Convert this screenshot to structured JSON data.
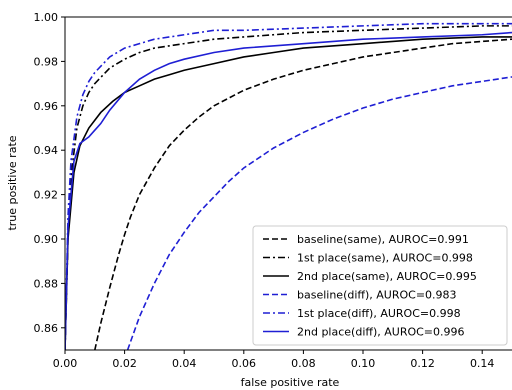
{
  "chart_data": {
    "type": "line",
    "title": "",
    "xlabel": "false positive rate",
    "ylabel": "true positive rate",
    "xlim": [
      0,
      0.15
    ],
    "ylim": [
      0.85,
      1.0
    ],
    "xticks": [
      0.0,
      0.02,
      0.04,
      0.06,
      0.08,
      0.1,
      0.12,
      0.14
    ],
    "xtick_labels": [
      "0.00",
      "0.02",
      "0.04",
      "0.06",
      "0.08",
      "0.10",
      "0.12",
      "0.14"
    ],
    "yticks": [
      0.86,
      0.88,
      0.9,
      0.92,
      0.94,
      0.96,
      0.98,
      1.0
    ],
    "ytick_labels": [
      "0.86",
      "0.88",
      "0.90",
      "0.92",
      "0.94",
      "0.96",
      "0.98",
      "1.00"
    ],
    "grid": false,
    "legend_position": "lower-right",
    "series": [
      {
        "name": "baseline(same), AUROC=0.991",
        "color": "#000000",
        "dash": "dashed",
        "x": [
          0.01,
          0.012,
          0.015,
          0.018,
          0.02,
          0.022,
          0.025,
          0.03,
          0.035,
          0.04,
          0.045,
          0.05,
          0.06,
          0.07,
          0.08,
          0.09,
          0.1,
          0.11,
          0.12,
          0.13,
          0.14,
          0.15
        ],
        "y": [
          0.85,
          0.862,
          0.878,
          0.893,
          0.902,
          0.91,
          0.92,
          0.932,
          0.942,
          0.949,
          0.955,
          0.96,
          0.967,
          0.972,
          0.976,
          0.979,
          0.982,
          0.984,
          0.986,
          0.988,
          0.989,
          0.99
        ]
      },
      {
        "name": "1st place(same), AUROC=0.998",
        "color": "#000000",
        "dash": "dashdot",
        "x": [
          0.0,
          0.001,
          0.002,
          0.004,
          0.006,
          0.008,
          0.01,
          0.015,
          0.02,
          0.025,
          0.03,
          0.04,
          0.05,
          0.06,
          0.08,
          0.1,
          0.12,
          0.14,
          0.15
        ],
        "y": [
          0.85,
          0.9,
          0.928,
          0.95,
          0.96,
          0.966,
          0.97,
          0.977,
          0.981,
          0.984,
          0.986,
          0.988,
          0.99,
          0.991,
          0.993,
          0.994,
          0.995,
          0.996,
          0.996
        ]
      },
      {
        "name": "2nd place(same), AUROC=0.995",
        "color": "#000000",
        "dash": "solid",
        "x": [
          0.0,
          0.001,
          0.003,
          0.005,
          0.008,
          0.012,
          0.016,
          0.02,
          0.025,
          0.03,
          0.035,
          0.04,
          0.05,
          0.06,
          0.07,
          0.08,
          0.1,
          0.12,
          0.14,
          0.15
        ],
        "y": [
          0.85,
          0.9,
          0.93,
          0.942,
          0.95,
          0.957,
          0.962,
          0.966,
          0.969,
          0.972,
          0.974,
          0.976,
          0.979,
          0.982,
          0.984,
          0.986,
          0.988,
          0.99,
          0.991,
          0.991
        ]
      },
      {
        "name": "baseline(diff), AUROC=0.983",
        "color": "#1f1fd4",
        "dash": "dashed",
        "x": [
          0.021,
          0.025,
          0.03,
          0.035,
          0.04,
          0.045,
          0.05,
          0.055,
          0.06,
          0.07,
          0.08,
          0.09,
          0.1,
          0.11,
          0.12,
          0.13,
          0.14,
          0.15
        ],
        "y": [
          0.85,
          0.865,
          0.88,
          0.893,
          0.903,
          0.912,
          0.919,
          0.926,
          0.932,
          0.941,
          0.948,
          0.954,
          0.959,
          0.963,
          0.966,
          0.969,
          0.971,
          0.973
        ]
      },
      {
        "name": "1st place(diff), AUROC=0.998",
        "color": "#1f1fd4",
        "dash": "dashdot",
        "x": [
          0.0,
          0.001,
          0.002,
          0.004,
          0.006,
          0.008,
          0.01,
          0.015,
          0.02,
          0.025,
          0.03,
          0.04,
          0.05,
          0.06,
          0.08,
          0.1,
          0.12,
          0.14,
          0.15
        ],
        "y": [
          0.85,
          0.91,
          0.935,
          0.955,
          0.965,
          0.971,
          0.975,
          0.982,
          0.986,
          0.988,
          0.99,
          0.992,
          0.994,
          0.994,
          0.995,
          0.996,
          0.997,
          0.997,
          0.997
        ]
      },
      {
        "name": "2nd place(diff), AUROC=0.996",
        "color": "#1f1fd4",
        "dash": "solid",
        "x": [
          0.0,
          0.001,
          0.003,
          0.005,
          0.008,
          0.01,
          0.012,
          0.015,
          0.02,
          0.025,
          0.03,
          0.035,
          0.04,
          0.05,
          0.06,
          0.08,
          0.1,
          0.12,
          0.14,
          0.15
        ],
        "y": [
          0.85,
          0.905,
          0.935,
          0.943,
          0.946,
          0.949,
          0.952,
          0.958,
          0.966,
          0.972,
          0.976,
          0.979,
          0.981,
          0.984,
          0.986,
          0.988,
          0.99,
          0.991,
          0.992,
          0.993
        ]
      }
    ]
  }
}
